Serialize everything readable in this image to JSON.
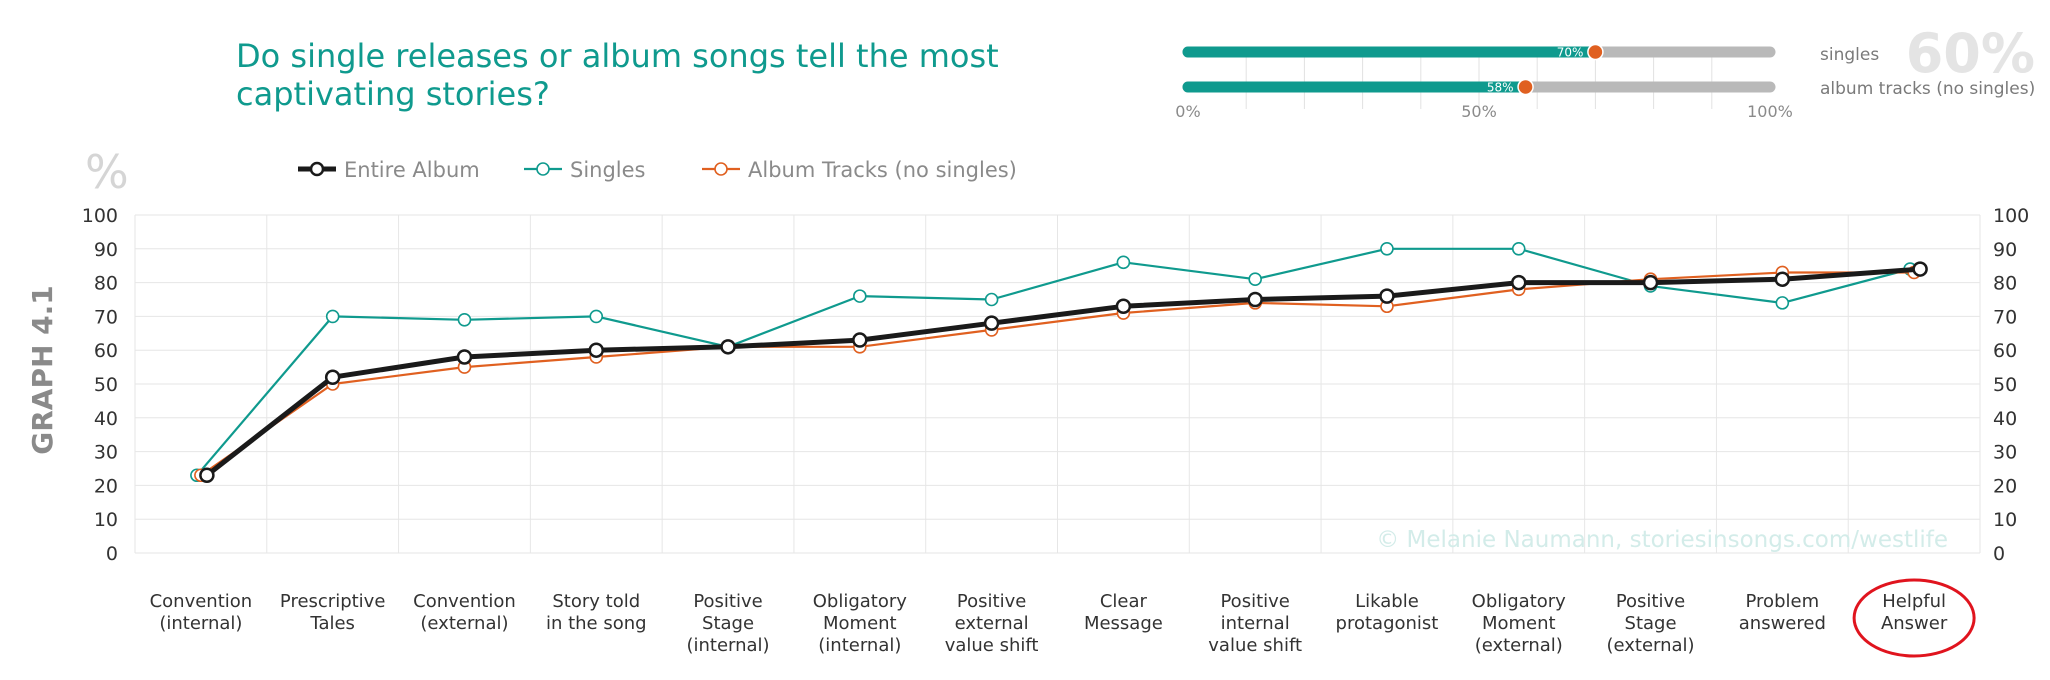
{
  "header": {
    "title_line1": "Do single releases or album songs tell the most",
    "title_line2": "captivating stories?"
  },
  "summary": {
    "big_percent": "60%",
    "bars": [
      {
        "label": "singles",
        "value": 70,
        "value_text": "70%"
      },
      {
        "label": "album tracks (no singles)",
        "value": 58,
        "value_text": "58%"
      }
    ],
    "axis_ticks": [
      "0%",
      "50%",
      "100%"
    ],
    "colors": {
      "fill": "#0f9a8e",
      "track": "#b9b9b9",
      "marker": "#e06020"
    }
  },
  "side_label": "GRAPH 4.1",
  "y_unit_symbol": "%",
  "watermark": "© Melanie Naumann, storiesinsongs.com/westlife",
  "chart_data": {
    "type": "line",
    "categories": [
      "Convention (internal)",
      "Prescriptive Tales",
      "Convention (external)",
      "Story told in the song",
      "Positive Stage (internal)",
      "Obligatory Moment (internal)",
      "Positive external value shift",
      "Clear Message",
      "Positive internal value shift",
      "Likable protagonist",
      "Obligatory Moment (external)",
      "Positive Stage (external)",
      "Problem answered",
      "Helpful Answer"
    ],
    "category_lines": [
      [
        "Convention",
        "(internal)"
      ],
      [
        "Prescriptive",
        "Tales"
      ],
      [
        "Convention",
        "(external)"
      ],
      [
        "Story told",
        "in the song"
      ],
      [
        "Positive",
        "Stage",
        "(internal)"
      ],
      [
        "Obligatory",
        "Moment",
        "(internal)"
      ],
      [
        "Positive",
        "external",
        "value shift"
      ],
      [
        "Clear",
        "Message"
      ],
      [
        "Positive",
        "internal",
        "value shift"
      ],
      [
        "Likable",
        "protagonist"
      ],
      [
        "Obligatory",
        "Moment",
        "(external)"
      ],
      [
        "Positive",
        "Stage",
        "(external)"
      ],
      [
        "Problem",
        "answered"
      ],
      [
        "Helpful",
        "Answer"
      ]
    ],
    "series": [
      {
        "name": "Entire Album",
        "color": "#1a1a1a",
        "values": [
          23,
          52,
          58,
          60,
          61,
          63,
          68,
          73,
          75,
          76,
          80,
          80,
          81,
          84
        ]
      },
      {
        "name": "Singles",
        "color": "#0f9a8e",
        "values": [
          23,
          70,
          69,
          70,
          61,
          76,
          75,
          86,
          81,
          90,
          90,
          79,
          74,
          84
        ]
      },
      {
        "name": "Album Tracks (no singles)",
        "color": "#e06020",
        "values": [
          23,
          50,
          55,
          58,
          61,
          61,
          66,
          71,
          74,
          73,
          78,
          81,
          83,
          83
        ]
      }
    ],
    "ylim": [
      0,
      100
    ],
    "yticks": [
      0,
      10,
      20,
      30,
      40,
      50,
      60,
      70,
      80,
      90,
      100
    ],
    "grid": true,
    "legend": "top-left",
    "highlight_category": "Helpful Answer",
    "highlight_color": "#e0141e"
  }
}
